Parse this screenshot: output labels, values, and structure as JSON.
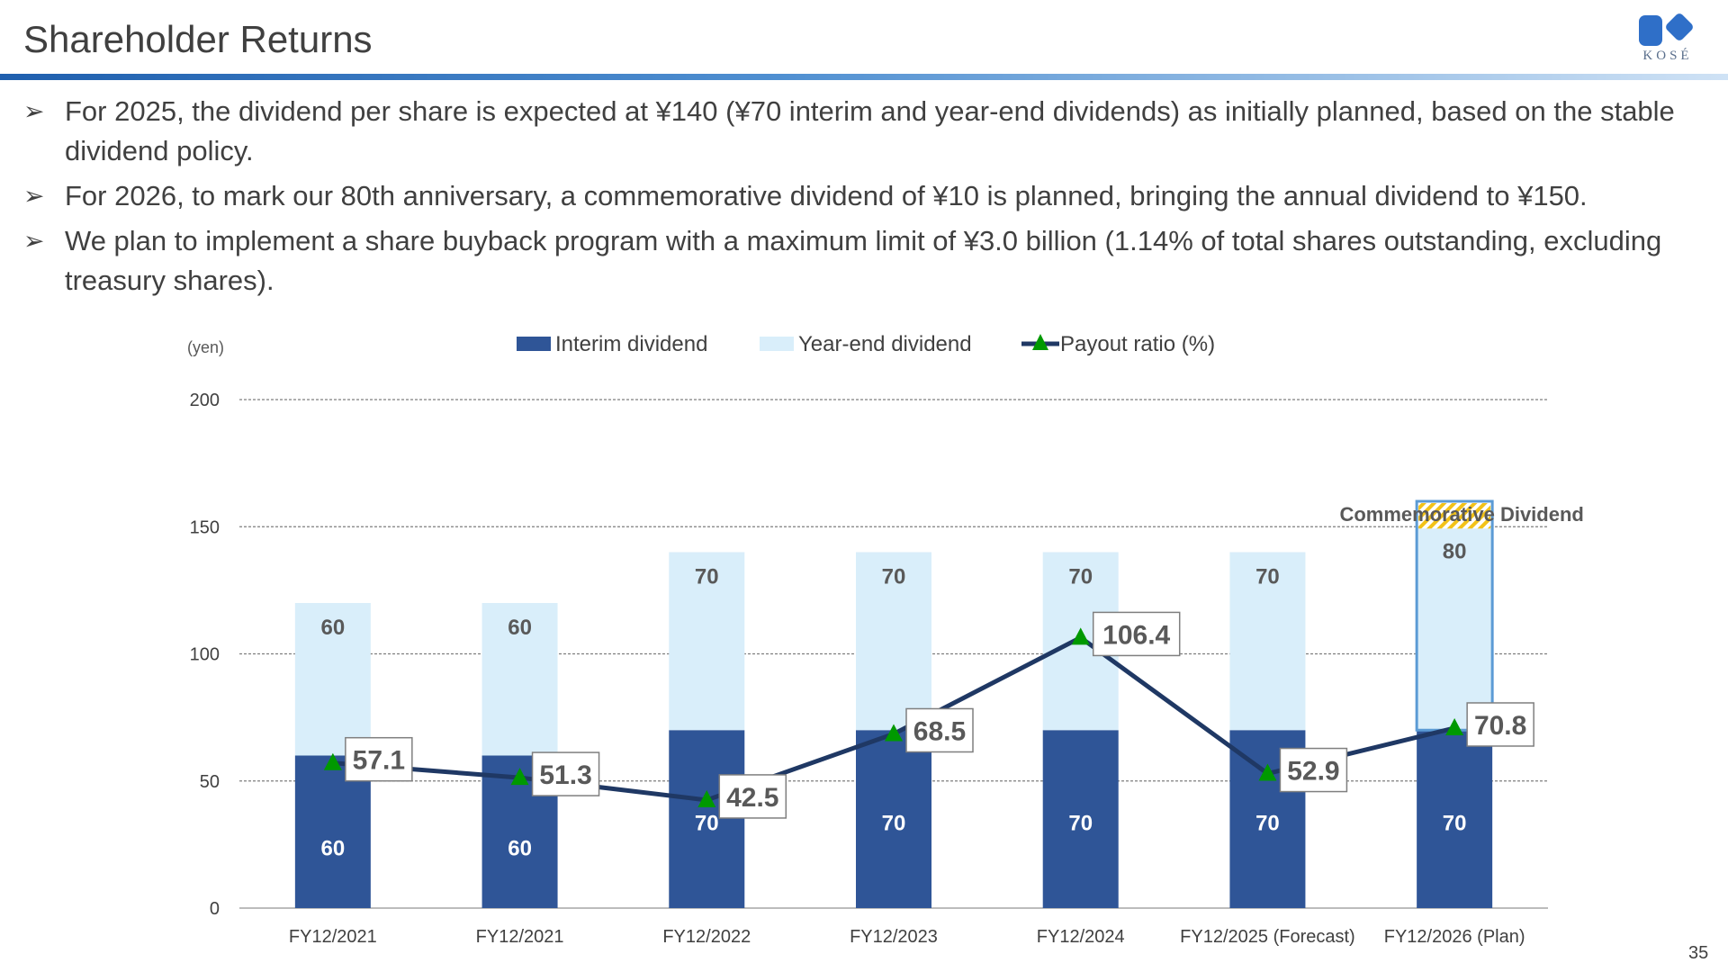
{
  "slide": {
    "title": "Shareholder Returns",
    "logo_text": "KOSÉ",
    "page_number": "35",
    "bullets": [
      "For 2025, the dividend per share is expected at ¥140 (¥70 interim and year-end dividends) as initially planned, based on the stable dividend policy.",
      "For 2026, to mark our 80th anniversary, a commemorative dividend of ¥10 is planned, bringing the annual dividend to ¥150.",
      "We plan to implement a share buyback program with a maximum limit of ¥3.0 billion (1.14% of total shares outstanding, excluding treasury shares)."
    ],
    "bullet_marker": "➢"
  },
  "chart_data": {
    "type": "bar",
    "stacked": true,
    "unit_label": "(yen)",
    "categories": [
      "FY12/2021",
      "FY12/2021",
      "FY12/2022",
      "FY12/2023",
      "FY12/2024",
      "FY12/2025 (Forecast)",
      "FY12/2026 (Plan)"
    ],
    "series": [
      {
        "name": "Interim dividend",
        "type": "bar",
        "color": "#2f5597",
        "values": [
          60,
          60,
          70,
          70,
          70,
          70,
          70
        ]
      },
      {
        "name": "Year-end dividend",
        "type": "bar",
        "color": "#d9eefa",
        "values": [
          60,
          60,
          70,
          70,
          70,
          70,
          80
        ]
      },
      {
        "name": "Payout ratio (%)",
        "type": "line",
        "color": "#1f3864",
        "marker_color": "#009900",
        "values": [
          57.1,
          51.3,
          42.5,
          68.5,
          106.4,
          52.9,
          70.8
        ]
      }
    ],
    "annotation": {
      "text": "Commemorative Dividend",
      "category_index": 6,
      "amount": 10
    },
    "ylim": [
      0,
      200
    ],
    "yticks": [
      0,
      50,
      100,
      150,
      200
    ],
    "grid": true,
    "legend_position": "top"
  }
}
